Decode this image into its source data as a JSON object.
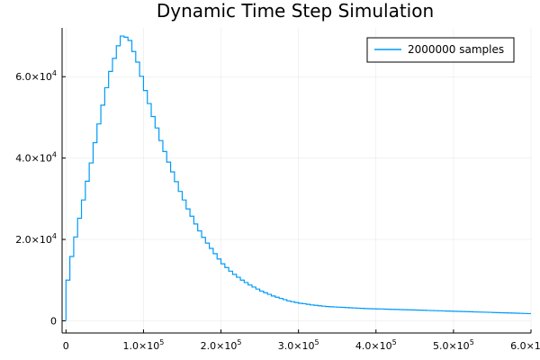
{
  "chart_data": {
    "type": "histogram",
    "title": "Dynamic Time Step Simulation",
    "xlabel": "",
    "ylabel": "",
    "xlim": [
      -5000,
      600000
    ],
    "ylim": [
      -3000,
      72000
    ],
    "grid": true,
    "legend_position": "top-right",
    "series": [
      {
        "name": "2000000 samples",
        "color": "#009AFA",
        "bin_width": 5000,
        "x_start": 0,
        "values": [
          10000,
          15800,
          20600,
          25200,
          29700,
          34300,
          38800,
          43800,
          48400,
          53000,
          57300,
          61300,
          64500,
          67600,
          70000,
          69700,
          68900,
          66200,
          63600,
          60100,
          56600,
          53400,
          50200,
          47400,
          44300,
          41600,
          39000,
          36600,
          34200,
          31800,
          29700,
          27500,
          25700,
          23800,
          22100,
          20500,
          19100,
          17800,
          16500,
          15200,
          14000,
          13100,
          12200,
          11400,
          10700,
          10000,
          9400,
          8800,
          8300,
          7800,
          7300,
          6900,
          6500,
          6100,
          5800,
          5500,
          5200,
          4900,
          4700,
          4500,
          4300,
          4200,
          4050,
          3900,
          3800,
          3700,
          3600,
          3500,
          3450,
          3400,
          3350,
          3300,
          3250,
          3200,
          3150,
          3100,
          3050,
          3000,
          2980,
          2950,
          2920,
          2900,
          2870,
          2840,
          2810,
          2780,
          2750,
          2720,
          2700,
          2670,
          2640,
          2610,
          2580,
          2550,
          2520,
          2490,
          2460,
          2430,
          2400,
          2370,
          2340,
          2310,
          2280,
          2250,
          2220,
          2190,
          2160,
          2130,
          2100,
          2070,
          2040,
          2010,
          1980,
          1950,
          1920,
          1890,
          1860,
          1830,
          1800,
          1770
        ]
      }
    ],
    "x_ticks": [
      {
        "value": 0,
        "mantissa": "0",
        "exp": ""
      },
      {
        "value": 100000,
        "mantissa": "1.0×10",
        "exp": "5"
      },
      {
        "value": 200000,
        "mantissa": "2.0×10",
        "exp": "5"
      },
      {
        "value": 300000,
        "mantissa": "3.0×10",
        "exp": "5"
      },
      {
        "value": 400000,
        "mantissa": "4.0×10",
        "exp": "5"
      },
      {
        "value": 500000,
        "mantissa": "5.0×10",
        "exp": "5"
      },
      {
        "value": 600000,
        "mantissa": "6.0×10",
        "exp": "5"
      }
    ],
    "y_ticks": [
      {
        "value": 0,
        "mantissa": "0",
        "exp": ""
      },
      {
        "value": 20000,
        "mantissa": "2.0×10",
        "exp": "4"
      },
      {
        "value": 40000,
        "mantissa": "4.0×10",
        "exp": "4"
      },
      {
        "value": 60000,
        "mantissa": "6.0×10",
        "exp": "4"
      }
    ]
  }
}
